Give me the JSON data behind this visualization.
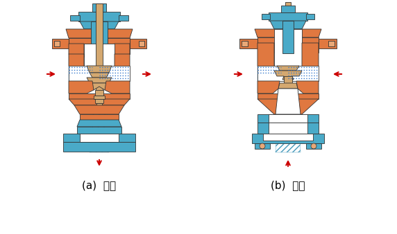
{
  "label_a": "(a)  分流",
  "label_b": "(b)  合流",
  "bg_color": "#ffffff",
  "orange_color": "#E07840",
  "blue_color": "#4AAAC8",
  "tan_color": "#D4A870",
  "red_color": "#CC0000",
  "hatch_blue": "#6BBBD8",
  "label_fontsize": 11,
  "fig_width": 5.72,
  "fig_height": 3.38,
  "dpi": 100
}
